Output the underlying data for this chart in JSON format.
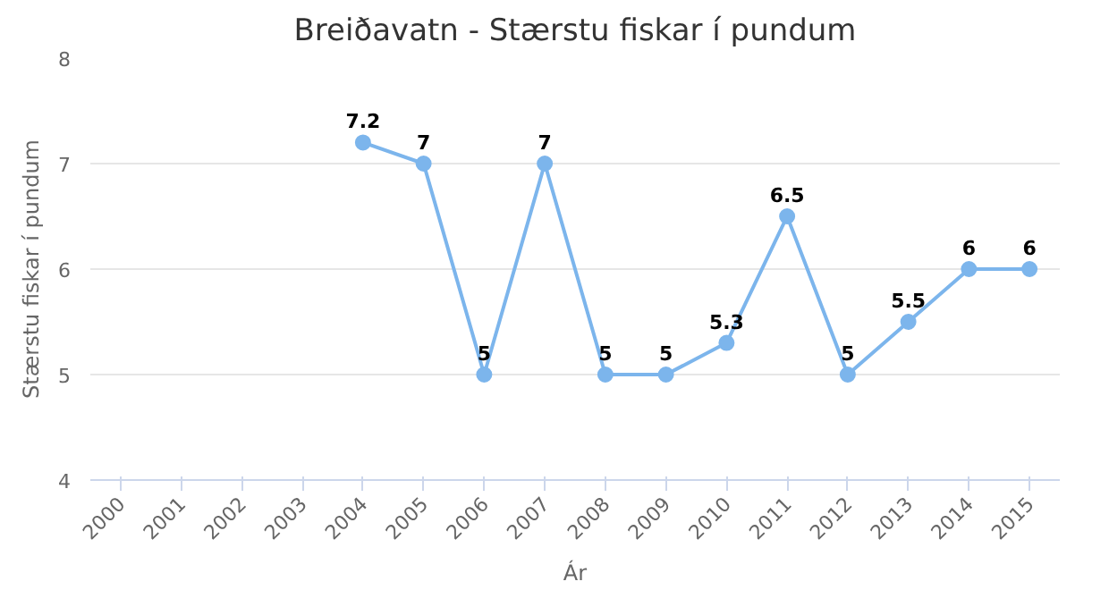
{
  "chart_data": {
    "type": "line",
    "title": "Breiðavatn - Stærstu fiskar í pundum",
    "xlabel": "Ár",
    "ylabel": "Stærstu fiskar í pundum",
    "categories": [
      "2000",
      "2001",
      "2002",
      "2003",
      "2004",
      "2005",
      "2006",
      "2007",
      "2008",
      "2009",
      "2010",
      "2011",
      "2012",
      "2013",
      "2014",
      "2015"
    ],
    "series": [
      {
        "color": "#7cb5ec",
        "values": [
          null,
          null,
          null,
          null,
          7.2,
          7,
          5,
          7,
          5,
          5,
          5.3,
          6.5,
          5,
          5.5,
          6,
          6
        ]
      }
    ],
    "ylim": [
      4,
      8
    ],
    "yticks": [
      4,
      5,
      6,
      7,
      8
    ],
    "grid": "y",
    "marker": "circle",
    "data_labels": true
  }
}
